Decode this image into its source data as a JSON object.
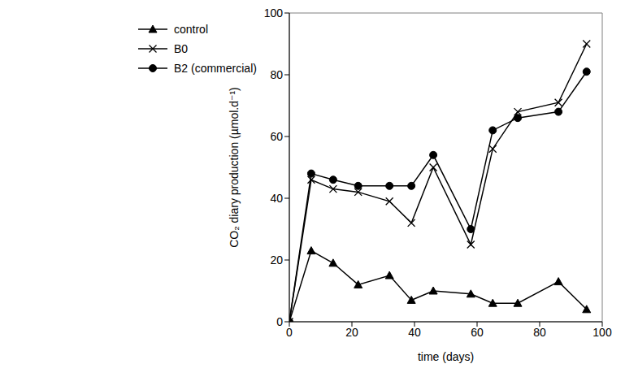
{
  "chart_data": {
    "type": "line",
    "x_label": "time (days)",
    "y_label": "CO₂ diary production (µmol.d⁻¹)",
    "x": [
      0,
      7,
      14,
      22,
      32,
      39,
      46,
      58,
      65,
      73,
      86,
      95
    ],
    "xlim": [
      0,
      100
    ],
    "xticks": [
      0,
      20,
      40,
      60,
      80,
      100
    ],
    "ylim": [
      0,
      100
    ],
    "yticks": [
      0,
      20,
      40,
      60,
      80,
      100
    ],
    "grid": false,
    "legend": "top-left",
    "series": [
      {
        "name": "control",
        "color": "#000000",
        "marker": "triangle",
        "values": [
          0,
          23,
          19,
          12,
          15,
          7,
          10,
          9,
          6,
          6,
          13,
          4
        ]
      },
      {
        "name": "B0",
        "color": "#000000",
        "marker": "x",
        "values": [
          0,
          46,
          43,
          42,
          39,
          32,
          50,
          25,
          56,
          68,
          71,
          90
        ]
      },
      {
        "name": "B2 (commercial)",
        "color": "#000000",
        "marker": "circle",
        "values": [
          0,
          48,
          46,
          44,
          44,
          44,
          54,
          30,
          62,
          66,
          68,
          81
        ]
      }
    ]
  }
}
